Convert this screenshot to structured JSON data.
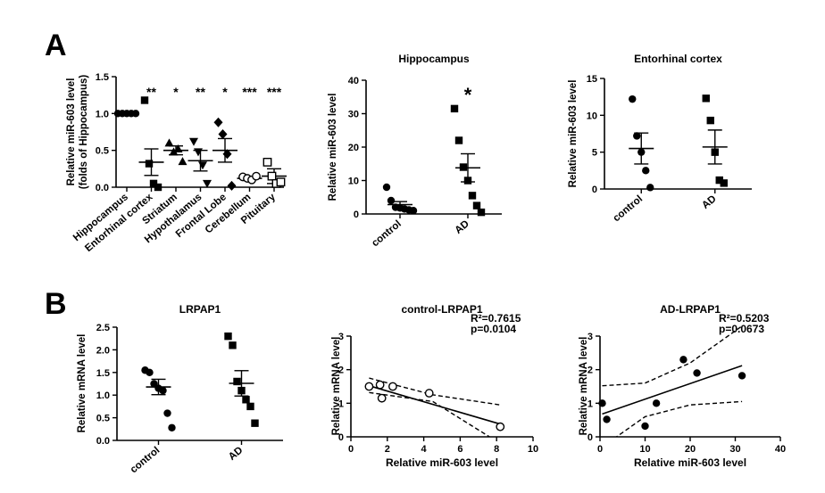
{
  "panel_labels": [
    "A",
    "B"
  ],
  "chart_data": [
    {
      "id": "regions",
      "type": "scatter",
      "title": "",
      "ylabel_lines": [
        "Relative miR-603 level",
        "(folds of Hippocampus)"
      ],
      "xlabel": "",
      "ylim": [
        0,
        1.5
      ],
      "yticks": [
        "0.0",
        "0.5",
        "1.0",
        "1.5"
      ],
      "categories": [
        "Hippocampus",
        "Entorhinal cortex",
        "Striatum",
        "Hypothalamus",
        "Frontal Lobe",
        "Cerebellum",
        "Pituitary"
      ],
      "significance": [
        "",
        "**",
        "*",
        "**",
        "*",
        "***",
        "***"
      ],
      "markers": [
        "circle",
        "square",
        "triangle-up",
        "triangle-down",
        "diamond",
        "circle-open",
        "square-open"
      ],
      "groups": [
        {
          "points": [
            1.0,
            1.0,
            1.0,
            1.0,
            1.0
          ],
          "mean": 1.0,
          "sem": 0.0
        },
        {
          "points": [
            1.18,
            0.32,
            0.05,
            0.0
          ],
          "mean": 0.34,
          "sem": 0.18
        },
        {
          "points": [
            0.6,
            0.48,
            0.52,
            0.35
          ],
          "mean": 0.5,
          "sem": 0.06
        },
        {
          "points": [
            0.62,
            0.48,
            0.3,
            0.05
          ],
          "mean": 0.36,
          "sem": 0.14
        },
        {
          "points": [
            0.88,
            0.72,
            0.45,
            0.02
          ],
          "mean": 0.5,
          "sem": 0.16
        },
        {
          "points": [
            0.14,
            0.12,
            0.1,
            0.15
          ],
          "mean": 0.12,
          "sem": 0.02
        },
        {
          "points": [
            0.34,
            0.15,
            0.05,
            0.07
          ],
          "mean": 0.15,
          "sem": 0.1
        }
      ]
    },
    {
      "id": "hippocampus",
      "type": "scatter",
      "title": "Hippocampus",
      "ylabel": "Relative miR-603 level",
      "ylim": [
        0,
        40
      ],
      "yticks": [
        "0",
        "10",
        "20",
        "30",
        "40"
      ],
      "categories": [
        "control",
        "AD"
      ],
      "significance": [
        "",
        "*"
      ],
      "markers": [
        "circle",
        "square"
      ],
      "groups": [
        {
          "points": [
            8.0,
            4.0,
            2.0,
            1.8,
            1.5,
            1.2,
            1.0
          ],
          "mean": 2.8,
          "sem": 0.9
        },
        {
          "points": [
            31.5,
            22.0,
            14.0,
            10.0,
            5.5,
            2.5,
            0.5
          ],
          "mean": 13.8,
          "sem": 4.2
        }
      ]
    },
    {
      "id": "entorhinal",
      "type": "scatter",
      "title": "Entorhinal cortex",
      "ylabel": "Relative miR-603 level",
      "ylim": [
        0,
        15
      ],
      "yticks": [
        "0",
        "5",
        "10",
        "15"
      ],
      "categories": [
        "control",
        "AD"
      ],
      "significance": [
        "",
        ""
      ],
      "markers": [
        "circle",
        "square"
      ],
      "groups": [
        {
          "points": [
            12.2,
            7.2,
            5.0,
            2.5,
            0.2
          ],
          "mean": 5.5,
          "sem": 2.1
        },
        {
          "points": [
            12.3,
            9.3,
            5.0,
            1.2,
            0.8
          ],
          "mean": 5.7,
          "sem": 2.3
        }
      ]
    },
    {
      "id": "lrpap1",
      "type": "scatter",
      "title": "LRPAP1",
      "ylabel": "Relative mRNA level",
      "ylim": [
        0,
        2.5
      ],
      "yticks": [
        "0.0",
        "0.5",
        "1.0",
        "1.5",
        "2.0",
        "2.5"
      ],
      "categories": [
        "control",
        "AD"
      ],
      "significance": [
        "",
        ""
      ],
      "markers": [
        "circle",
        "square"
      ],
      "groups": [
        {
          "points": [
            1.55,
            1.5,
            1.25,
            1.15,
            1.1,
            0.6,
            0.28
          ],
          "mean": 1.18,
          "sem": 0.17
        },
        {
          "points": [
            2.3,
            2.1,
            1.3,
            1.1,
            0.9,
            0.75,
            0.38
          ],
          "mean": 1.26,
          "sem": 0.28
        }
      ]
    },
    {
      "id": "control_lrpap1",
      "type": "scatter",
      "title": "control-LRPAP1",
      "stat_lines": [
        "R²=0.7615",
        "p=0.0104"
      ],
      "xlabel": "Relative miR-603 level",
      "ylabel": "Relative mRNA level",
      "xlim": [
        0,
        10
      ],
      "ylim": [
        0,
        3
      ],
      "xticks": [
        "0",
        "2",
        "4",
        "6",
        "8",
        "10"
      ],
      "yticks": [
        "0",
        "1",
        "2",
        "3"
      ],
      "marker": "circle-open",
      "points": [
        [
          1.0,
          1.5
        ],
        [
          1.6,
          1.55
        ],
        [
          2.3,
          1.5
        ],
        [
          1.7,
          1.15
        ],
        [
          4.3,
          1.3
        ],
        [
          8.2,
          0.3
        ]
      ],
      "fit": [
        [
          1.0,
          1.52
        ],
        [
          8.2,
          0.38
        ]
      ],
      "ci_upper": [
        [
          1.0,
          1.75
        ],
        [
          4.5,
          1.25
        ],
        [
          8.2,
          0.95
        ]
      ],
      "ci_lower": [
        [
          1.0,
          1.32
        ],
        [
          4.5,
          1.05
        ],
        [
          8.2,
          -0.2
        ]
      ]
    },
    {
      "id": "ad_lrpap1",
      "type": "scatter",
      "title": "AD-LRPAP1",
      "stat_lines": [
        "R²=0.5203",
        "p=0.0673"
      ],
      "xlabel": "Relative miR-603 level",
      "ylabel": "Relative mRNA level",
      "xlim": [
        0,
        40
      ],
      "ylim": [
        0,
        3
      ],
      "xticks": [
        "0",
        "10",
        "20",
        "30",
        "40"
      ],
      "yticks": [
        "0",
        "1",
        "2",
        "3"
      ],
      "marker": "circle",
      "points": [
        [
          0.5,
          1.0
        ],
        [
          1.5,
          0.52
        ],
        [
          10.0,
          0.32
        ],
        [
          12.5,
          1.0
        ],
        [
          18.5,
          2.3
        ],
        [
          21.5,
          1.9
        ],
        [
          31.5,
          1.82
        ]
      ],
      "fit": [
        [
          0.5,
          0.68
        ],
        [
          31.5,
          2.12
        ]
      ],
      "ci_upper": [
        [
          0.5,
          1.52
        ],
        [
          10.0,
          1.6
        ],
        [
          20.0,
          2.2
        ],
        [
          31.5,
          3.3
        ]
      ],
      "ci_lower": [
        [
          0.5,
          -0.3
        ],
        [
          10.0,
          0.6
        ],
        [
          20.0,
          0.95
        ],
        [
          31.5,
          1.05
        ]
      ]
    }
  ]
}
